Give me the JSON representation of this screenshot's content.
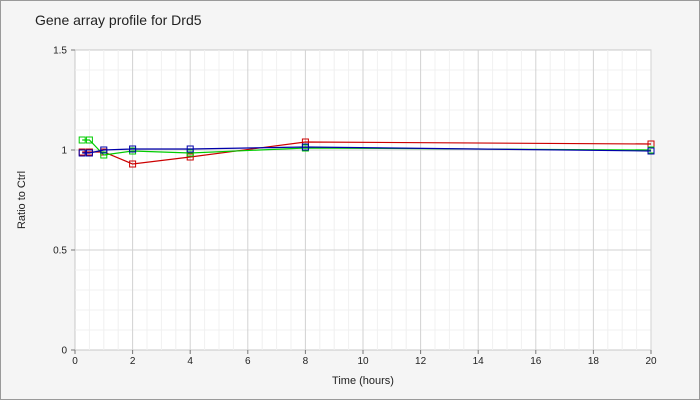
{
  "chart_data": {
    "type": "line",
    "title": "Gene array profile for Drd5",
    "xlabel": "Time (hours)",
    "ylabel": "Ratio to Ctrl",
    "xlim": [
      0,
      20
    ],
    "ylim": [
      0,
      1.5
    ],
    "xticks": [
      "0",
      "2",
      "4",
      "6",
      "8",
      "10",
      "12",
      "14",
      "16",
      "18",
      "20"
    ],
    "yticks": [
      "0",
      "0.5",
      "1",
      "1.5"
    ],
    "grid": true,
    "legend": "none",
    "series": [
      {
        "color": "#cc0000",
        "x": [
          0.25,
          0.5,
          1,
          2,
          4,
          8,
          20
        ],
        "y": [
          0.99,
          0.99,
          0.99,
          0.93,
          0.965,
          1.04,
          1.03
        ]
      },
      {
        "color": "#00cc00",
        "x": [
          0.25,
          0.5,
          1,
          2,
          4,
          8,
          20
        ],
        "y": [
          1.05,
          1.05,
          0.975,
          0.995,
          0.985,
          1.01,
          1.0
        ]
      },
      {
        "color": "#0000aa",
        "x": [
          0.25,
          0.5,
          1,
          2,
          4,
          8,
          20
        ],
        "y": [
          0.985,
          0.985,
          1.0,
          1.005,
          1.005,
          1.015,
          0.995
        ]
      }
    ]
  }
}
